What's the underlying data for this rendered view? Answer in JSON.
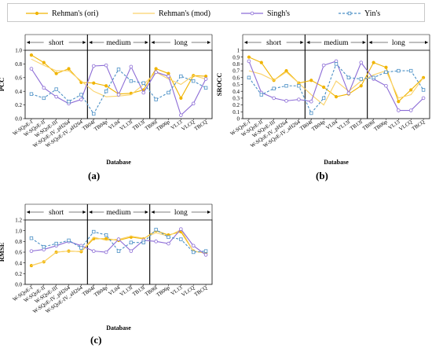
{
  "legend": [
    {
      "name": "Rehman's (ori)",
      "color": "#f0b400",
      "marker": "filled-circle",
      "dash": false
    },
    {
      "name": "Rehman's (mod)",
      "color": "#fad26a",
      "marker": "none",
      "dash": false
    },
    {
      "name": "Singh's",
      "color": "#8c6cd6",
      "marker": "open-circle",
      "dash": false
    },
    {
      "name": "Yin's",
      "color": "#4a8fc5",
      "marker": "open-square",
      "dash": true
    }
  ],
  "categories": [
    "W-SQoE-I",
    "W-SQoE-II",
    "W-SQoE-III",
    "W-SQoE-IV_pH264",
    "W-SQoE-IV_aH264",
    "TB04f",
    "TB04p",
    "VL04",
    "VL13l",
    "TB13l",
    "TB06l",
    "TB06p",
    "VL13",
    "VLCQ",
    "TBCQ"
  ],
  "groups": [
    {
      "label": "short",
      "start": 0,
      "end": 4
    },
    {
      "label": "medium",
      "start": 5,
      "end": 9
    },
    {
      "label": "long",
      "start": 10,
      "end": 14
    }
  ],
  "chart_data": [
    {
      "type": "line",
      "panel_label": "(a)",
      "ylabel": "PCC",
      "xlabel": "Database",
      "ylim": [
        0,
        1.0
      ],
      "yticks": [
        0,
        0.2,
        0.4,
        0.6,
        0.8,
        1.0
      ],
      "yticklabels": [
        "0.0",
        "0.2",
        "0.4",
        "0.6",
        "0.8",
        "1.0"
      ],
      "series": [
        {
          "name": "Rehman's (ori)",
          "values": [
            0.93,
            0.82,
            0.66,
            0.73,
            0.53,
            0.52,
            0.48,
            0.36,
            0.37,
            0.42,
            0.73,
            0.66,
            0.3,
            0.63,
            0.62
          ]
        },
        {
          "name": "Rehman's (mod)",
          "values": [
            0.87,
            0.78,
            0.7,
            0.7,
            0.55,
            0.4,
            0.32,
            0.33,
            0.35,
            0.5,
            0.68,
            0.58,
            0.5,
            0.63,
            0.58
          ]
        },
        {
          "name": "Singh's",
          "values": [
            0.73,
            0.45,
            0.32,
            0.22,
            0.28,
            0.77,
            0.78,
            0.35,
            0.76,
            0.38,
            0.68,
            0.62,
            0.05,
            0.22,
            0.58
          ]
        },
        {
          "name": "Yin's",
          "values": [
            0.36,
            0.3,
            0.43,
            0.25,
            0.35,
            0.07,
            0.4,
            0.72,
            0.55,
            0.52,
            0.28,
            0.38,
            0.62,
            0.55,
            0.45
          ]
        }
      ]
    },
    {
      "type": "line",
      "panel_label": "(b)",
      "ylabel": "SROCC",
      "xlabel": "Database",
      "ylim": [
        0,
        1.0
      ],
      "yticks": [
        0,
        0.1,
        0.2,
        0.3,
        0.4,
        0.5,
        0.6,
        0.7,
        0.8,
        0.9,
        1.0
      ],
      "yticklabels": [
        "0",
        "0.1",
        "0.2",
        "0.3",
        "0.4",
        "0.5",
        "0.6",
        "0.7",
        "0.8",
        "0.9",
        "1"
      ],
      "series": [
        {
          "name": "Rehman's (ori)",
          "values": [
            0.9,
            0.82,
            0.56,
            0.7,
            0.52,
            0.56,
            0.46,
            0.32,
            0.36,
            0.48,
            0.82,
            0.75,
            0.25,
            0.42,
            0.6
          ]
        },
        {
          "name": "Rehman's (mod)",
          "values": [
            0.7,
            0.65,
            0.56,
            0.68,
            0.52,
            0.35,
            0.2,
            0.55,
            0.4,
            0.55,
            0.64,
            0.7,
            0.3,
            0.35,
            0.6
          ]
        },
        {
          "name": "Singh's",
          "values": [
            0.84,
            0.38,
            0.3,
            0.26,
            0.28,
            0.25,
            0.78,
            0.84,
            0.37,
            0.82,
            0.58,
            0.48,
            0.12,
            0.12,
            0.3
          ]
        },
        {
          "name": "Yin's",
          "values": [
            0.6,
            0.35,
            0.44,
            0.48,
            0.48,
            0.08,
            0.3,
            0.8,
            0.6,
            0.58,
            0.6,
            0.68,
            0.7,
            0.7,
            0.42
          ]
        }
      ]
    },
    {
      "type": "line",
      "panel_label": "(c)",
      "ylabel": "RMSE",
      "xlabel": "Database",
      "ylim": [
        0,
        1.2
      ],
      "yticks": [
        0,
        0.2,
        0.4,
        0.6,
        0.8,
        1.0,
        1.2
      ],
      "yticklabels": [
        "0.0",
        "0.2",
        "0.4",
        "0.6",
        "0.8",
        "1.0",
        "1.2"
      ],
      "series": [
        {
          "name": "Rehman's (ori)",
          "values": [
            0.35,
            0.42,
            0.6,
            0.62,
            0.61,
            0.85,
            0.85,
            0.82,
            0.88,
            0.85,
            1.0,
            0.92,
            0.98,
            0.62,
            0.58
          ]
        },
        {
          "name": "Rehman's (mod)",
          "values": [
            0.35,
            0.42,
            0.6,
            0.62,
            0.61,
            0.88,
            0.82,
            0.84,
            0.9,
            0.86,
            0.96,
            0.9,
            1.02,
            0.62,
            0.58
          ]
        },
        {
          "name": "Singh's",
          "values": [
            0.62,
            0.65,
            0.72,
            0.8,
            0.72,
            0.62,
            0.6,
            0.84,
            0.62,
            0.82,
            0.8,
            0.76,
            1.03,
            0.72,
            0.55
          ]
        },
        {
          "name": "Yin's",
          "values": [
            0.86,
            0.7,
            0.76,
            0.82,
            0.68,
            0.98,
            0.92,
            0.62,
            0.78,
            0.78,
            1.02,
            0.88,
            0.84,
            0.6,
            0.62
          ]
        }
      ]
    }
  ]
}
